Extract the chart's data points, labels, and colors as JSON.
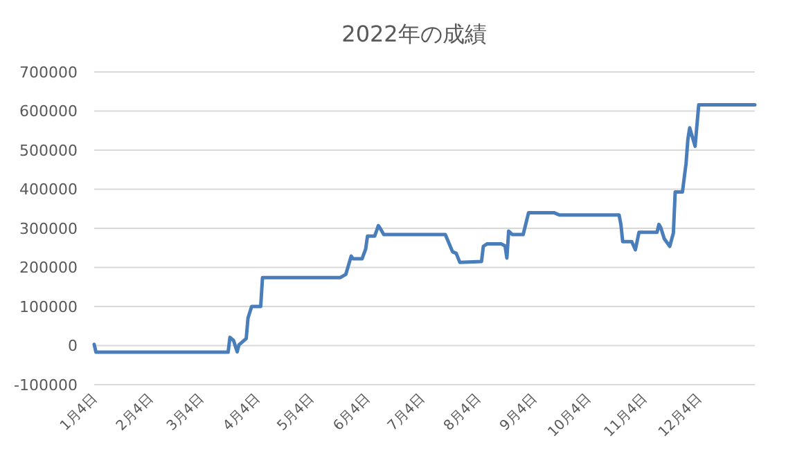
{
  "chart_data": {
    "type": "line",
    "title": "2022年の成績",
    "x": [
      "2022-01-04",
      "2022-01-05",
      "2022-03-19",
      "2022-03-20",
      "2022-03-22",
      "2022-03-24",
      "2022-03-25",
      "2022-03-29",
      "2022-03-30",
      "2022-04-01",
      "2022-04-06",
      "2022-04-07",
      "2022-05-20",
      "2022-05-23",
      "2022-05-26",
      "2022-05-27",
      "2022-06-01",
      "2022-06-03",
      "2022-06-04",
      "2022-06-08",
      "2022-06-10",
      "2022-06-11",
      "2022-06-13",
      "2022-07-17",
      "2022-07-21",
      "2022-07-23",
      "2022-07-25",
      "2022-08-06",
      "2022-08-07",
      "2022-08-09",
      "2022-08-17",
      "2022-08-19",
      "2022-08-20",
      "2022-08-21",
      "2022-08-23",
      "2022-08-29",
      "2022-09-01",
      "2022-09-15",
      "2022-09-18",
      "2022-10-21",
      "2022-10-22",
      "2022-10-23",
      "2022-10-28",
      "2022-10-30",
      "2022-11-01",
      "2022-11-11",
      "2022-11-12",
      "2022-11-13",
      "2022-11-15",
      "2022-11-18",
      "2022-11-20",
      "2022-11-21",
      "2022-11-25",
      "2022-11-27",
      "2022-11-28",
      "2022-11-29",
      "2022-12-02",
      "2022-12-04",
      "2023-01-04"
    ],
    "series": [
      {
        "color": "#4a7ebb",
        "values": [
          3000,
          -17000,
          -17000,
          21000,
          13000,
          -16000,
          2000,
          18000,
          71000,
          100000,
          100000,
          174000,
          174000,
          182000,
          229000,
          222000,
          222000,
          247000,
          280000,
          280000,
          307000,
          300000,
          284000,
          284000,
          240000,
          236000,
          213000,
          215000,
          254000,
          260000,
          260000,
          255000,
          224000,
          293000,
          284000,
          284000,
          340000,
          340000,
          334000,
          334000,
          310000,
          266000,
          266000,
          245000,
          290000,
          290000,
          310000,
          302000,
          273000,
          254000,
          288000,
          393000,
          393000,
          466000,
          527000,
          557000,
          510000,
          616000,
          616000
        ]
      }
    ],
    "xlim": [
      "2022-01-04",
      "2023-01-04"
    ],
    "xticks": [
      {
        "value": "2022-01-04",
        "label": "1月4日"
      },
      {
        "value": "2022-02-04",
        "label": "2月4日"
      },
      {
        "value": "2022-03-04",
        "label": "3月4日"
      },
      {
        "value": "2022-04-04",
        "label": "4月4日"
      },
      {
        "value": "2022-05-04",
        "label": "5月4日"
      },
      {
        "value": "2022-06-04",
        "label": "6月4日"
      },
      {
        "value": "2022-07-04",
        "label": "7月4日"
      },
      {
        "value": "2022-08-04",
        "label": "8月4日"
      },
      {
        "value": "2022-09-04",
        "label": "9月4日"
      },
      {
        "value": "2022-10-04",
        "label": "10月4日"
      },
      {
        "value": "2022-11-04",
        "label": "11月4日"
      },
      {
        "value": "2022-12-04",
        "label": "12月4日"
      }
    ],
    "ylim": [
      -100000,
      700000
    ],
    "yticks": [
      -100000,
      0,
      100000,
      200000,
      300000,
      400000,
      500000,
      600000,
      700000
    ],
    "grid": "y",
    "marker": "none",
    "line_style": "solid"
  }
}
